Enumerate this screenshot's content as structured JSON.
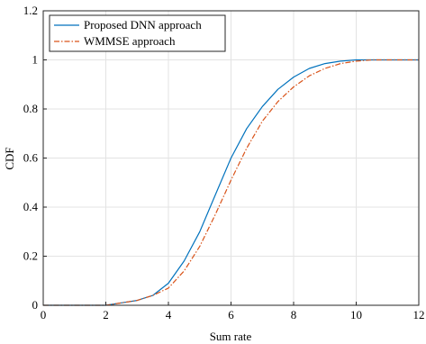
{
  "chart_data": {
    "type": "line",
    "title": "",
    "xlabel": "Sum rate",
    "ylabel": "CDF",
    "xlim": [
      0,
      12
    ],
    "ylim": [
      0,
      1.2
    ],
    "xticks": [
      "0",
      "2",
      "4",
      "6",
      "8",
      "10",
      "12"
    ],
    "yticks": [
      "0",
      "0.2",
      "0.4",
      "0.6",
      "0.8",
      "1",
      "1.2"
    ],
    "grid": true,
    "legend_position": "top-left",
    "series": [
      {
        "name": "Proposed DNN approach",
        "color": "#0072BD",
        "style": "solid",
        "x": [
          0,
          2.0,
          2.5,
          3.0,
          3.5,
          4.0,
          4.5,
          5.0,
          5.5,
          6.0,
          6.5,
          7.0,
          7.5,
          8.0,
          8.5,
          9.0,
          9.5,
          10.0,
          10.5,
          12.0
        ],
        "y": [
          0,
          0.0,
          0.01,
          0.02,
          0.04,
          0.09,
          0.18,
          0.3,
          0.45,
          0.6,
          0.72,
          0.81,
          0.88,
          0.93,
          0.965,
          0.985,
          0.995,
          1.0,
          1.0,
          1.0
        ]
      },
      {
        "name": "WMMSE approach",
        "color": "#D95319",
        "style": "dashdot",
        "x": [
          0,
          2.0,
          2.5,
          3.0,
          3.5,
          4.0,
          4.5,
          5.0,
          5.5,
          6.0,
          6.5,
          7.0,
          7.5,
          8.0,
          8.5,
          9.0,
          9.5,
          10.0,
          10.5,
          12.0
        ],
        "y": [
          0,
          0.0,
          0.01,
          0.02,
          0.04,
          0.07,
          0.14,
          0.24,
          0.37,
          0.51,
          0.64,
          0.75,
          0.83,
          0.89,
          0.935,
          0.965,
          0.985,
          0.995,
          1.0,
          1.0
        ]
      }
    ]
  }
}
